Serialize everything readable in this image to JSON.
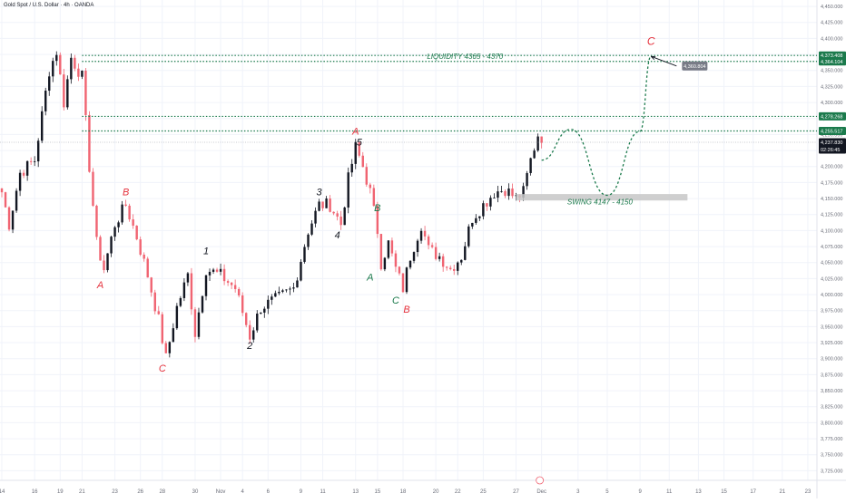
{
  "header": {
    "title": "Gold Spot / U.S. Dollar · 4h · OANDA"
  },
  "chart_data": {
    "type": "candlestick",
    "ylim": [
      3710,
      4460
    ],
    "yticks": [
      3725,
      3750,
      3775,
      3800,
      3825,
      3850,
      3875,
      3900,
      3925,
      3950,
      3975,
      4000,
      4025,
      4050,
      4075,
      4100,
      4125,
      4150,
      4175,
      4200,
      4225,
      4250,
      4275,
      4300,
      4325,
      4350,
      4375,
      4400,
      4425,
      4450
    ],
    "ytick_labels": [
      "3,725.000",
      "3,750.000",
      "3,775.000",
      "3,800.000",
      "3,825.000",
      "3,850.000",
      "3,875.000",
      "3,900.000",
      "3,925.000",
      "3,950.000",
      "3,975.000",
      "4,000.000",
      "4,025.000",
      "4,050.000",
      "4,075.000",
      "4,100.000",
      "4,125.000",
      "4,150.000",
      "4,175.000",
      "4,200.000",
      "4,225.000",
      "4,250.000",
      "4,275.000",
      "4,300.000",
      "4,325.000",
      "4,350.000",
      "4,375.000",
      "4,400.000",
      "4,425.000",
      "4,450.000"
    ],
    "x_ticks": [
      {
        "label": "14",
        "i": 0
      },
      {
        "label": "16",
        "i": 9
      },
      {
        "label": "19",
        "i": 16
      },
      {
        "label": "21",
        "i": 22
      },
      {
        "label": "23",
        "i": 31
      },
      {
        "label": "26",
        "i": 38
      },
      {
        "label": "28",
        "i": 44
      },
      {
        "label": "30",
        "i": 53
      },
      {
        "label": "Nov",
        "i": 60
      },
      {
        "label": "4",
        "i": 66
      },
      {
        "label": "6",
        "i": 73
      },
      {
        "label": "9",
        "i": 82
      },
      {
        "label": "11",
        "i": 88
      },
      {
        "label": "13",
        "i": 97
      },
      {
        "label": "15",
        "i": 103
      },
      {
        "label": "18",
        "i": 110
      },
      {
        "label": "20",
        "i": 119
      },
      {
        "label": "22",
        "i": 125
      },
      {
        "label": "25",
        "i": 132
      },
      {
        "label": "27",
        "i": 141
      },
      {
        "label": "Dec",
        "i": 148
      },
      {
        "label": "3",
        "i": 158
      },
      {
        "label": "5",
        "i": 166
      },
      {
        "label": "9",
        "i": 175
      },
      {
        "label": "11",
        "i": 183
      },
      {
        "label": "13",
        "i": 191
      },
      {
        "label": "15",
        "i": 198
      },
      {
        "label": "17",
        "i": 206
      },
      {
        "label": "21",
        "i": 214
      },
      {
        "label": "23",
        "i": 221
      }
    ],
    "waypoints": [
      {
        "i": 0,
        "p": 4160
      },
      {
        "i": 2,
        "p": 4110
      },
      {
        "i": 5,
        "p": 4190
      },
      {
        "i": 9,
        "p": 4210
      },
      {
        "i": 13,
        "p": 4350
      },
      {
        "i": 15,
        "p": 4380
      },
      {
        "i": 17,
        "p": 4300
      },
      {
        "i": 19,
        "p": 4370
      },
      {
        "i": 22,
        "p": 4340
      },
      {
        "i": 24,
        "p": 4200
      },
      {
        "i": 26,
        "p": 4080
      },
      {
        "i": 28,
        "p": 4040
      },
      {
        "i": 31,
        "p": 4110
      },
      {
        "i": 34,
        "p": 4140
      },
      {
        "i": 37,
        "p": 4090
      },
      {
        "i": 40,
        "p": 4030
      },
      {
        "i": 43,
        "p": 3960
      },
      {
        "i": 45,
        "p": 3900
      },
      {
        "i": 48,
        "p": 3980
      },
      {
        "i": 51,
        "p": 4030
      },
      {
        "i": 53,
        "p": 3940
      },
      {
        "i": 56,
        "p": 4040
      },
      {
        "i": 60,
        "p": 4030
      },
      {
        "i": 64,
        "p": 4010
      },
      {
        "i": 68,
        "p": 3935
      },
      {
        "i": 71,
        "p": 3980
      },
      {
        "i": 76,
        "p": 3995
      },
      {
        "i": 80,
        "p": 4010
      },
      {
        "i": 84,
        "p": 4100
      },
      {
        "i": 87,
        "p": 4140
      },
      {
        "i": 90,
        "p": 4140
      },
      {
        "i": 93,
        "p": 4110
      },
      {
        "i": 95,
        "p": 4180
      },
      {
        "i": 97,
        "p": 4230
      },
      {
        "i": 99,
        "p": 4200
      },
      {
        "i": 101,
        "p": 4160
      },
      {
        "i": 103,
        "p": 4100
      },
      {
        "i": 104,
        "p": 4050
      },
      {
        "i": 106,
        "p": 4080
      },
      {
        "i": 108,
        "p": 4040
      },
      {
        "i": 110,
        "p": 4010
      },
      {
        "i": 112,
        "p": 4060
      },
      {
        "i": 115,
        "p": 4110
      },
      {
        "i": 117,
        "p": 4070
      },
      {
        "i": 120,
        "p": 4060
      },
      {
        "i": 123,
        "p": 4040
      },
      {
        "i": 126,
        "p": 4060
      },
      {
        "i": 129,
        "p": 4120
      },
      {
        "i": 132,
        "p": 4140
      },
      {
        "i": 135,
        "p": 4160
      },
      {
        "i": 138,
        "p": 4165
      },
      {
        "i": 141,
        "p": 4150
      },
      {
        "i": 143,
        "p": 4160
      },
      {
        "i": 145,
        "p": 4210
      },
      {
        "i": 147,
        "p": 4250
      },
      {
        "i": 148,
        "p": 4237
      }
    ],
    "levels": [
      {
        "price": 4373.408,
        "label": "4,373.408",
        "color": "#1b7a4c"
      },
      {
        "price": 4364.104,
        "label": "4,364.104",
        "color": "#1b7a4c"
      },
      {
        "price": 4278.268,
        "label": "4,278.268",
        "color": "#1b7a4c"
      },
      {
        "price": 4255.517,
        "label": "4,255.517",
        "color": "#1b7a4c"
      }
    ],
    "last_price": {
      "price": 4237.83,
      "label": "4,237.830",
      "countdown": "02:26:45",
      "color": "#131722"
    },
    "zone": {
      "i0": 141,
      "i1": 188,
      "p0": 4147,
      "p1": 4157,
      "color": "#c7c7c7"
    },
    "projection": [
      {
        "i": 148,
        "p": 4210
      },
      {
        "i": 156,
        "p": 4258
      },
      {
        "i": 166,
        "p": 4155
      },
      {
        "i": 175,
        "p": 4255
      },
      {
        "i": 178,
        "p": 4372
      }
    ],
    "target_arrow": {
      "from": {
        "i": 178,
        "p": 4372
      },
      "to": {
        "i": 185,
        "p": 4357
      }
    },
    "target_box": {
      "label": "4,360.804",
      "i": 187,
      "p": 4357
    },
    "annotations": [
      {
        "text": "LIQUIDITY 4365 - 4370",
        "i": 127,
        "p": 4368,
        "color": "#1b7a4c",
        "italic": true,
        "size": 8
      },
      {
        "text": "SWING 4147 - 4150",
        "i": 164,
        "p": 4141,
        "color": "#1b7a4c",
        "italic": true,
        "size": 8
      },
      {
        "text": "C",
        "i": 178,
        "p": 4390,
        "color": "#e5323d",
        "size": 12
      },
      {
        "text": "A",
        "i": 27,
        "p": 4010,
        "color": "#e5323d",
        "size": 11
      },
      {
        "text": "B",
        "i": 34,
        "p": 4155,
        "color": "#e5323d",
        "size": 11
      },
      {
        "text": "C",
        "i": 44,
        "p": 3880,
        "color": "#e5323d",
        "size": 11
      },
      {
        "text": "1",
        "i": 56,
        "p": 4063,
        "color": "#131722",
        "size": 11
      },
      {
        "text": "2",
        "i": 68,
        "p": 3915,
        "color": "#131722",
        "size": 11
      },
      {
        "text": "3",
        "i": 87,
        "p": 4155,
        "color": "#131722",
        "size": 11
      },
      {
        "text": "4",
        "i": 92,
        "p": 4088,
        "color": "#131722",
        "size": 11
      },
      {
        "text": "A",
        "i": 97,
        "p": 4250,
        "color": "#e5323d",
        "size": 11
      },
      {
        "text": "5",
        "i": 98,
        "p": 4233,
        "color": "#131722",
        "size": 11
      },
      {
        "text": "B",
        "i": 103,
        "p": 4130,
        "color": "#1b7a4c",
        "size": 11
      },
      {
        "text": "A",
        "i": 101,
        "p": 4022,
        "color": "#1b7a4c",
        "size": 11
      },
      {
        "text": "C",
        "i": 108,
        "p": 3986,
        "color": "#1b7a4c",
        "size": 11
      },
      {
        "text": "B",
        "i": 111,
        "p": 3972,
        "color": "#e5323d",
        "size": 11
      }
    ],
    "colors": {
      "up": "#131722",
      "down": "#f06472",
      "grid": "#f0f3fa",
      "axis": "#131722"
    }
  }
}
